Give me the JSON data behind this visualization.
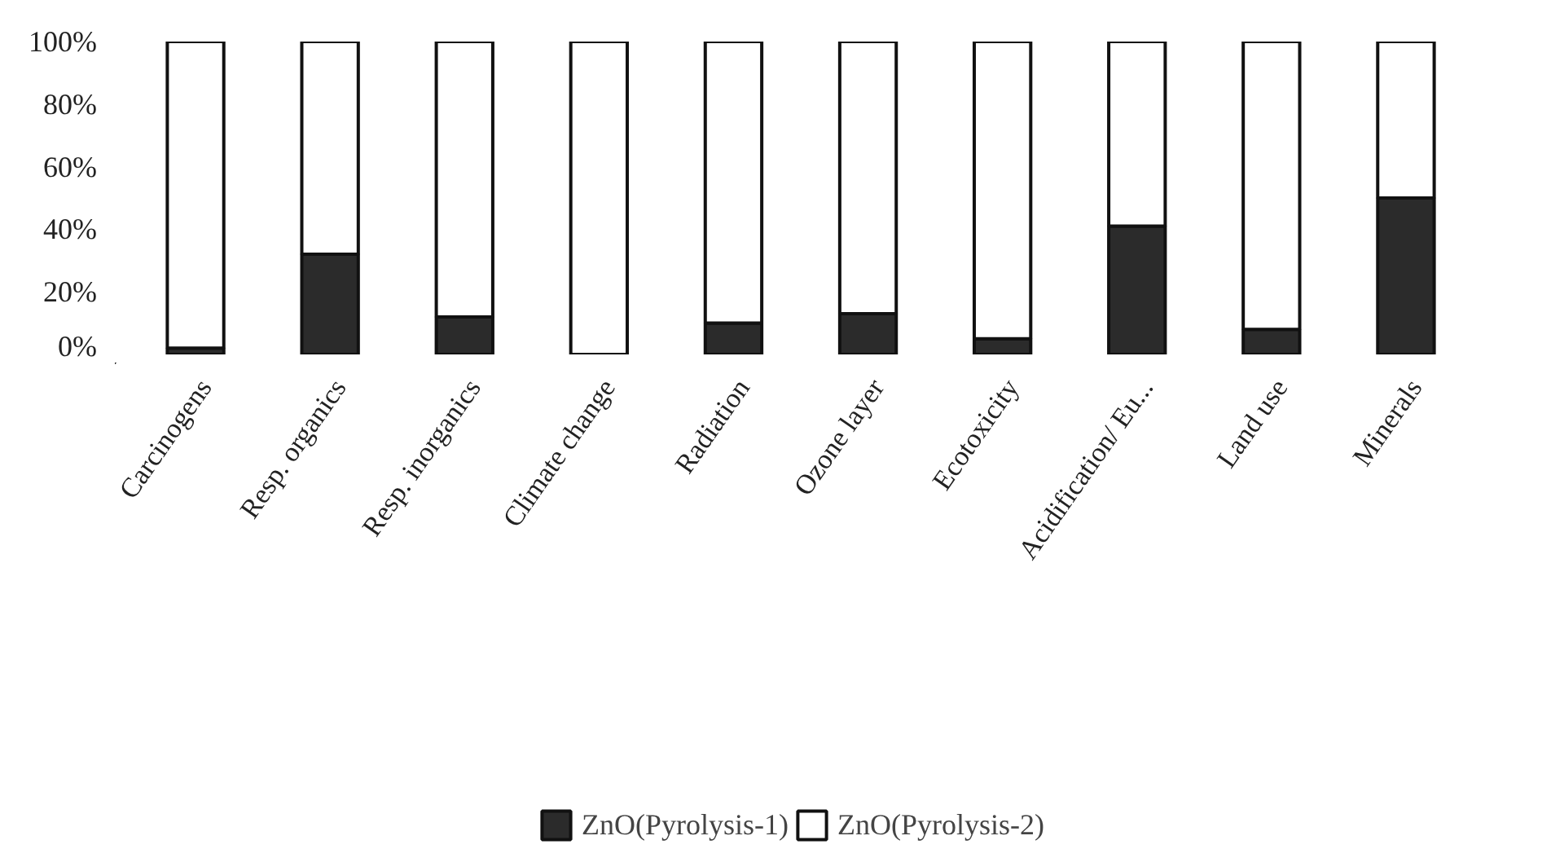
{
  "chart_data": {
    "type": "bar",
    "stacked": true,
    "categories": [
      "Carcinogens",
      "Resp. organics",
      "Resp. inorganics",
      "Climate change",
      "Radiation",
      "Ozone layer",
      "Ecotoxicity",
      "Acidification/ Eu...",
      "Land use",
      "Minerals"
    ],
    "series": [
      {
        "name": "ZnO(Pyrolysis-1)",
        "color": "#2b2b2b",
        "values": [
          2,
          32,
          12,
          0,
          10,
          13,
          5,
          41,
          8,
          50
        ]
      },
      {
        "name": "ZnO(Pyrolysis-2)",
        "color": "#ffffff",
        "values": [
          98,
          68,
          88,
          100,
          90,
          87,
          95,
          59,
          92,
          50
        ]
      }
    ],
    "ylim": [
      0,
      100
    ],
    "yticks": [
      {
        "value": 0,
        "label": "0%"
      },
      {
        "value": 20,
        "label": "20%"
      },
      {
        "value": 40,
        "label": "40%"
      },
      {
        "value": 60,
        "label": "60%"
      },
      {
        "value": 80,
        "label": "80%"
      },
      {
        "value": 100,
        "label": "100%"
      }
    ],
    "grid": false,
    "legend": "bottom"
  }
}
